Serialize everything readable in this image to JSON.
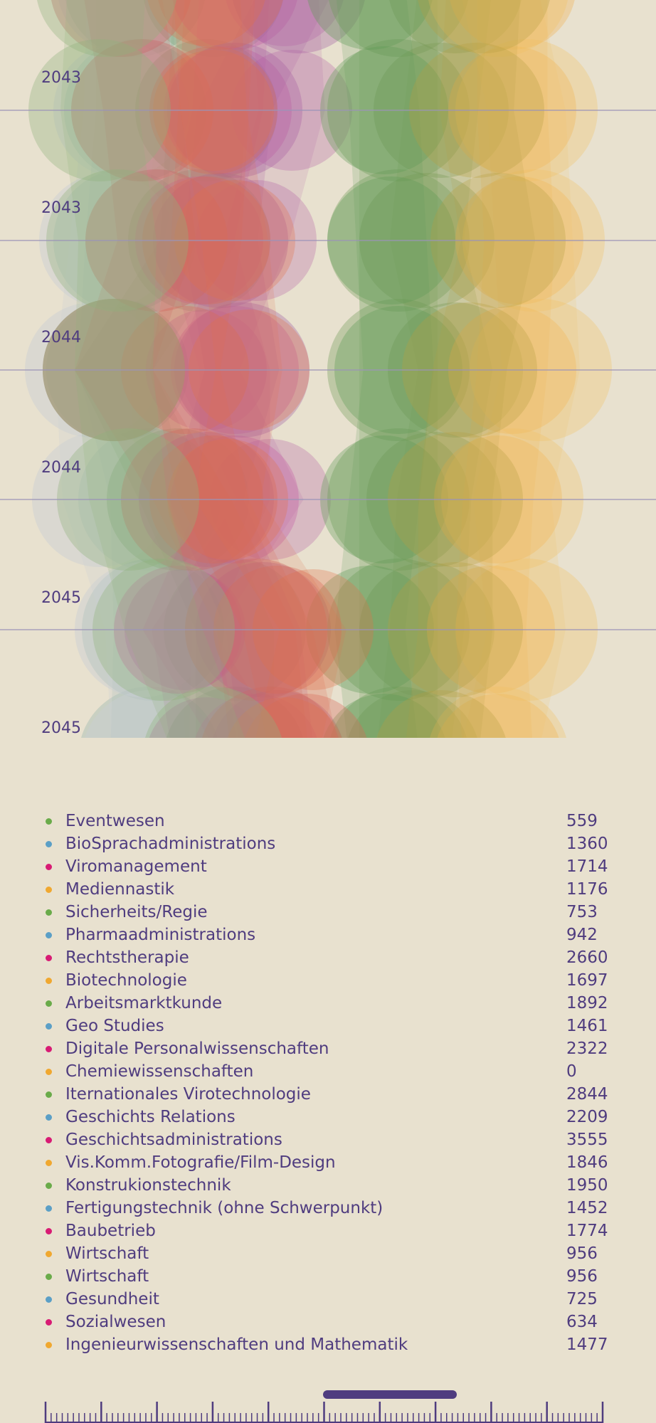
{
  "colors": {
    "background": "#e8e1cf",
    "text": "#4f3c7f",
    "green": "#6aab4a",
    "blue": "#5b9fc6",
    "magenta": "#d81b74",
    "orange": "#f0a830",
    "red": "#c0423c",
    "grid": "#9a93b8"
  },
  "years": [
    "2043",
    "2043",
    "2044",
    "2044",
    "2045",
    "2045"
  ],
  "legend": [
    {
      "label": "Eventwesen",
      "value": "559",
      "color": "green"
    },
    {
      "label": "BioSprachadministrations",
      "value": "1360",
      "color": "blue"
    },
    {
      "label": "Viromanagement",
      "value": "1714",
      "color": "magenta"
    },
    {
      "label": "Mediennastik",
      "value": "1176",
      "color": "orange"
    },
    {
      "label": "Sicherheits/Regie",
      "value": "753",
      "color": "green"
    },
    {
      "label": "Pharmaadministrations",
      "value": "942",
      "color": "blue"
    },
    {
      "label": "Rechtstherapie",
      "value": "2660",
      "color": "magenta"
    },
    {
      "label": "Biotechnologie",
      "value": "1697",
      "color": "orange"
    },
    {
      "label": "Arbeitsmarktkunde",
      "value": "1892",
      "color": "green"
    },
    {
      "label": "Geo Studies",
      "value": "1461",
      "color": "blue"
    },
    {
      "label": "Digitale Personalwissenschaften",
      "value": "2322",
      "color": "magenta"
    },
    {
      "label": "Chemiewissenschaften",
      "value": "0",
      "color": "orange"
    },
    {
      "label": "Iternationales Virotechnologie",
      "value": "2844",
      "color": "green"
    },
    {
      "label": "Geschichts Relations",
      "value": "2209",
      "color": "blue"
    },
    {
      "label": "Geschichtsadministrations",
      "value": "3555",
      "color": "magenta"
    },
    {
      "label": "Vis.Komm.Fotografie/Film-Design",
      "value": "1846",
      "color": "orange"
    },
    {
      "label": "Konstrukionstechnik",
      "value": "1950",
      "color": "green"
    },
    {
      "label": "Fertigungstechnik (ohne Schwerpunkt)",
      "value": "1452",
      "color": "blue"
    },
    {
      "label": "Baubetrieb",
      "value": "1774",
      "color": "magenta"
    },
    {
      "label": "Wirtschaft",
      "value": "956",
      "color": "orange"
    },
    {
      "label": "Wirtschaft",
      "value": "956",
      "color": "green"
    },
    {
      "label": "Gesundheit",
      "value": "725",
      "color": "blue"
    },
    {
      "label": "Sozialwesen",
      "value": "634",
      "color": "magenta"
    },
    {
      "label": "Ingenieurwissenschaften und Mathematik",
      "value": "1477",
      "color": "orange"
    }
  ]
}
